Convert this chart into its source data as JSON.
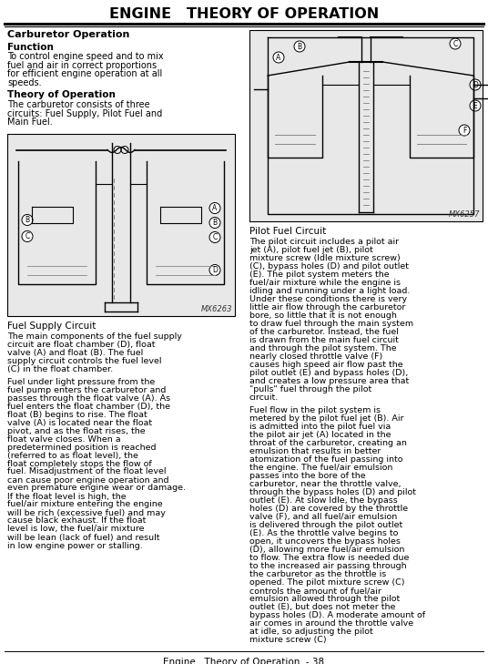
{
  "title": "ENGINE   THEORY OF OPERATION",
  "background_color": "#ffffff",
  "footer_text": "Engine   Theory of Operation  - 38",
  "section_heading": "Carburetor Operation",
  "sub_heading1": "Function",
  "function_text": "To control engine speed and to mix fuel and air in correct\nproportions for efficient engine operation at all speeds.",
  "sub_heading2": "Theory of Operation",
  "theory_text": "The carburetor consists of three circuits: Fuel Supply, Pilot\nFuel and Main Fuel.",
  "img1_label": "MX6263",
  "img2_label": "MX6257",
  "fuel_supply_heading": "Fuel Supply Circuit",
  "fuel_supply_para1": "The main components of the fuel supply circuit are float chamber (D), float valve (A) and float (B). The fuel supply circuit controls the fuel level (C) in the float chamber.",
  "fuel_supply_para2": "Fuel under light pressure from the fuel pump enters the carburetor and passes through the float valve (A). As fuel enters the float chamber (D), the float (B) begins to rise. The float valve (A) is located near the float pivot, and as the float rises, the float valve closes. When a predetermined position is reached (referred to as float level), the float completely stops the flow of fuel. Misadjustment of the float level can cause poor engine operation and even premature engine wear or damage. If the float level is high, the fuel/air mixture entering the engine will be rich (excessive fuel) and may cause black exhaust. If the float level is low, the fuel/air mixture will be lean (lack of fuel) and result in low engine power or stalling.",
  "pilot_fuel_heading": "Pilot Fuel Circuit",
  "pilot_fuel_para1": "The pilot circuit includes a pilot air jet (A), pilot fuel jet (B), pilot mixture screw (Idle mixture screw) (C), bypass holes (D) and pilot outlet (E). The pilot system meters the fuel/air mixture while the engine is idling and running under a light load. Under these conditions there is very little air flow through the carburetor bore, so little that it is not enough to draw fuel through the main system of the carburetor. Instead, the fuel is drawn from the main fuel circuit and through the pilot system. The nearly closed throttle valve (F) causes high speed air flow past the pilot outlet (E) and bypass holes (D), and creates a low pressure area that \"pulls\" fuel through the pilot circuit.",
  "pilot_fuel_para2": "Fuel flow in the pilot system is metered by the pilot fuel jet (B). Air is admitted into the pilot fuel via the pilot air jet (A) located in the throat of the carburetor, creating an emulsion that results in better atomization of the fuel passing into the engine. The fuel/air emulsion passes into the bore of the carburetor, near the throttle valve, through the bypass holes (D) and pilot outlet (E). At slow Idle, the bypass holes (D) are covered by the throttle valve (F), and all fuel/air emulsion is delivered through the pilot outlet (E). As the throttle valve begins to open, it uncovers the bypass holes (D), allowing more fuel/air emulsion to flow. The extra flow is needed due to the increased air passing through the carburetor as the throttle is opened. The pilot mixture screw (C) controls the amount of fuel/air emulsion allowed through the pilot outlet (E), but does not meter the bypass holes (D). A moderate amount of air comes in around the throttle valve at idle, so adjusting the pilot mixture screw (C)"
}
